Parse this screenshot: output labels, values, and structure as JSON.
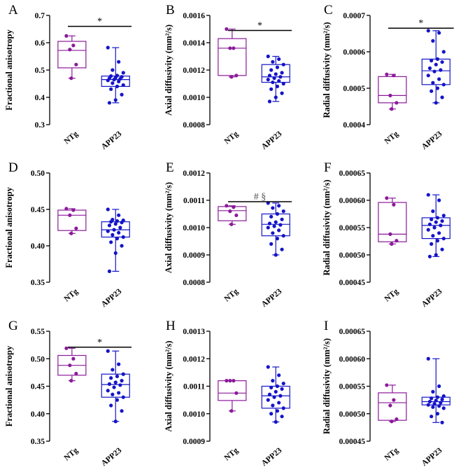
{
  "chart_data": [
    {
      "type": "box",
      "panel": "A",
      "ylabel": "Fractional anisotropy",
      "ylim": [
        0.3,
        0.7
      ],
      "yticks": [
        0.3,
        0.4,
        0.5,
        0.6,
        0.7
      ],
      "ytick_labels": [
        "0.3",
        "0.4",
        "0.5",
        "0.6",
        "0.7"
      ],
      "categories": [
        "NTg",
        "APP23"
      ],
      "annotation": "*",
      "groups": [
        {
          "name": "NTg",
          "color": "#8B1A9A",
          "box": {
            "min": 0.47,
            "q1": 0.508,
            "median": 0.572,
            "q3": 0.605,
            "max": 0.625
          },
          "points": [
            0.625,
            0.59,
            0.575,
            0.52,
            0.47
          ]
        },
        {
          "name": "APP23",
          "color": "#1414C8",
          "box": {
            "min": 0.38,
            "q1": 0.44,
            "median": 0.465,
            "q3": 0.478,
            "max": 0.582
          },
          "points": [
            0.582,
            0.53,
            0.5,
            0.49,
            0.48,
            0.478,
            0.475,
            0.472,
            0.47,
            0.468,
            0.465,
            0.462,
            0.458,
            0.452,
            0.445,
            0.44,
            0.43,
            0.41,
            0.39,
            0.38
          ]
        }
      ]
    },
    {
      "type": "box",
      "panel": "B",
      "ylabel": "Axial diffusivity (mm²/s)",
      "ylim": [
        0.0008,
        0.0016
      ],
      "yticks": [
        0.0008,
        0.001,
        0.0012,
        0.0014,
        0.0016
      ],
      "ytick_labels": [
        "0.0008",
        "0.0010",
        "0.0012",
        "0.0014",
        "0.0016"
      ],
      "categories": [
        "NTg",
        "APP23"
      ],
      "annotation": "*",
      "groups": [
        {
          "name": "NTg",
          "color": "#8B1A9A",
          "box": {
            "min": 0.00115,
            "q1": 0.00116,
            "median": 0.00136,
            "q3": 0.00143,
            "max": 0.0015
          },
          "points": [
            0.0015,
            0.00136,
            0.00136,
            0.00116,
            0.00115
          ]
        },
        {
          "name": "APP23",
          "color": "#1414C8",
          "box": {
            "min": 0.00097,
            "q1": 0.00111,
            "median": 0.00115,
            "q3": 0.00124,
            "max": 0.0013
          },
          "points": [
            0.0013,
            0.00128,
            0.00126,
            0.00124,
            0.00122,
            0.0012,
            0.00118,
            0.00117,
            0.00116,
            0.00115,
            0.00114,
            0.00113,
            0.00112,
            0.00111,
            0.0011,
            0.00108,
            0.00106,
            0.00103,
            0.001,
            0.00097
          ]
        }
      ]
    },
    {
      "type": "box",
      "panel": "C",
      "ylabel": "Radial diffusivity (mm²/s)",
      "ylim": [
        0.0004,
        0.0007
      ],
      "yticks": [
        0.0004,
        0.0005,
        0.0006,
        0.0007
      ],
      "ytick_labels": [
        "0.0004",
        "0.0005",
        "0.0006",
        "0.0007"
      ],
      "categories": [
        "NTg",
        "APP23"
      ],
      "annotation": "*",
      "groups": [
        {
          "name": "NTg",
          "color": "#8B1A9A",
          "box": {
            "min": 0.000443,
            "q1": 0.00046,
            "median": 0.00048,
            "q3": 0.000532,
            "max": 0.000538
          },
          "points": [
            0.000538,
            0.000535,
            0.00048,
            0.00046,
            0.000443
          ]
        },
        {
          "name": "APP23",
          "color": "#1414C8",
          "box": {
            "min": 0.00046,
            "q1": 0.00051,
            "median": 0.000548,
            "q3": 0.00058,
            "max": 0.000658
          },
          "points": [
            0.000658,
            0.000652,
            0.00063,
            0.0006,
            0.00058,
            0.000576,
            0.000572,
            0.000565,
            0.000555,
            0.00055,
            0.000546,
            0.000535,
            0.000525,
            0.000515,
            0.00051,
            0.0005,
            0.000492,
            0.000475,
            0.00046
          ]
        }
      ]
    },
    {
      "type": "box",
      "panel": "D",
      "ylabel": "Fractional anisotropy",
      "ylim": [
        0.35,
        0.5
      ],
      "yticks": [
        0.35,
        0.4,
        0.45,
        0.5
      ],
      "ytick_labels": [
        "0.35",
        "0.40",
        "0.45",
        "0.50"
      ],
      "categories": [
        "NTg",
        "APP23"
      ],
      "annotation": "",
      "groups": [
        {
          "name": "NTg",
          "color": "#8B1A9A",
          "box": {
            "min": 0.417,
            "q1": 0.421,
            "median": 0.442,
            "q3": 0.449,
            "max": 0.451
          },
          "points": [
            0.451,
            0.449,
            0.442,
            0.424,
            0.417
          ]
        },
        {
          "name": "APP23",
          "color": "#1414C8",
          "box": {
            "min": 0.365,
            "q1": 0.412,
            "median": 0.422,
            "q3": 0.433,
            "max": 0.45
          },
          "points": [
            0.45,
            0.442,
            0.436,
            0.435,
            0.434,
            0.433,
            0.432,
            0.43,
            0.428,
            0.425,
            0.422,
            0.42,
            0.418,
            0.415,
            0.412,
            0.41,
            0.405,
            0.4,
            0.39,
            0.365
          ]
        }
      ]
    },
    {
      "type": "box",
      "panel": "E",
      "ylabel": "Axial diffusivity (mm²/s)",
      "ylim": [
        0.0008,
        0.0012
      ],
      "yticks": [
        0.0008,
        0.0009,
        0.001,
        0.0011,
        0.0012
      ],
      "ytick_labels": [
        "0.0008",
        "0.0009",
        "0.0010",
        "0.0011",
        "0.0012"
      ],
      "categories": [
        "NTg",
        "APP23"
      ],
      "annotation": "# §",
      "groups": [
        {
          "name": "NTg",
          "color": "#8B1A9A",
          "box": {
            "min": 0.001012,
            "q1": 0.001025,
            "median": 0.001062,
            "q3": 0.001077,
            "max": 0.00108
          },
          "points": [
            0.00108,
            0.001075,
            0.00106,
            0.001045,
            0.001012
          ]
        },
        {
          "name": "APP23",
          "color": "#1414C8",
          "box": {
            "min": 0.0009,
            "q1": 0.00097,
            "median": 0.001012,
            "q3": 0.00105,
            "max": 0.00109
          },
          "points": [
            0.00109,
            0.00108,
            0.001072,
            0.00106,
            0.00105,
            0.00104,
            0.00103,
            0.00102,
            0.001015,
            0.00101,
            0.001005,
            0.001,
            0.00099,
            0.00098,
            0.00097,
            0.00096,
            0.00094,
            0.00092,
            0.0009
          ]
        }
      ]
    },
    {
      "type": "box",
      "panel": "F",
      "ylabel": "Radial diffusivity (mm²/s)",
      "ylim": [
        0.00045,
        0.00065
      ],
      "yticks": [
        0.00045,
        0.0005,
        0.00055,
        0.0006,
        0.00065
      ],
      "ytick_labels": [
        "0.00045",
        "0.00050",
        "0.00055",
        "0.00060",
        "0.00065"
      ],
      "categories": [
        "NTg",
        "APP23"
      ],
      "annotation": "",
      "groups": [
        {
          "name": "NTg",
          "color": "#8B1A9A",
          "box": {
            "min": 0.00052,
            "q1": 0.000524,
            "median": 0.000538,
            "q3": 0.000596,
            "max": 0.000604
          },
          "points": [
            0.000604,
            0.000592,
            0.000538,
            0.000526,
            0.00052
          ]
        },
        {
          "name": "APP23",
          "color": "#1414C8",
          "box": {
            "min": 0.000497,
            "q1": 0.00053,
            "median": 0.000554,
            "q3": 0.000568,
            "max": 0.00061
          },
          "points": [
            0.00061,
            0.0006,
            0.00058,
            0.000572,
            0.000568,
            0.000565,
            0.000562,
            0.00056,
            0.000556,
            0.000554,
            0.00055,
            0.000546,
            0.00054,
            0.000535,
            0.00053,
            0.000526,
            0.00052,
            0.00051,
            0.0005,
            0.000497
          ]
        }
      ]
    },
    {
      "type": "box",
      "panel": "G",
      "ylabel": "Fractional anisotropy",
      "ylim": [
        0.35,
        0.55
      ],
      "yticks": [
        0.35,
        0.4,
        0.45,
        0.5,
        0.55
      ],
      "ytick_labels": [
        "0.35",
        "0.40",
        "0.45",
        "0.50",
        "0.55"
      ],
      "categories": [
        "NTg",
        "APP23"
      ],
      "annotation": "*",
      "groups": [
        {
          "name": "NTg",
          "color": "#8B1A9A",
          "box": {
            "min": 0.46,
            "q1": 0.47,
            "median": 0.488,
            "q3": 0.506,
            "max": 0.519
          },
          "points": [
            0.519,
            0.5,
            0.488,
            0.473,
            0.46
          ]
        },
        {
          "name": "APP23",
          "color": "#1414C8",
          "box": {
            "min": 0.386,
            "q1": 0.43,
            "median": 0.453,
            "q3": 0.472,
            "max": 0.514
          },
          "points": [
            0.514,
            0.49,
            0.48,
            0.472,
            0.468,
            0.465,
            0.46,
            0.457,
            0.454,
            0.452,
            0.448,
            0.442,
            0.438,
            0.435,
            0.43,
            0.425,
            0.415,
            0.405,
            0.386
          ]
        }
      ]
    },
    {
      "type": "box",
      "panel": "H",
      "ylabel": "Axial diffusivity (mm²/s)",
      "ylim": [
        0.0009,
        0.0013
      ],
      "yticks": [
        0.0009,
        0.001,
        0.0011,
        0.0012,
        0.0013
      ],
      "ytick_labels": [
        "0.0009",
        "0.0010",
        "0.0011",
        "0.0012",
        "0.0013"
      ],
      "categories": [
        "NTg",
        "APP23"
      ],
      "annotation": "",
      "groups": [
        {
          "name": "NTg",
          "color": "#8B1A9A",
          "box": {
            "min": 0.00101,
            "q1": 0.001048,
            "median": 0.001075,
            "q3": 0.00112,
            "max": 0.00112
          },
          "points": [
            0.00112,
            0.00112,
            0.00112,
            0.001075,
            0.00101
          ]
        },
        {
          "name": "APP23",
          "color": "#1414C8",
          "box": {
            "min": 0.00097,
            "q1": 0.00102,
            "median": 0.001065,
            "q3": 0.0011,
            "max": 0.00117
          },
          "points": [
            0.00117,
            0.00114,
            0.00112,
            0.00111,
            0.0011,
            0.001095,
            0.00109,
            0.00108,
            0.00107,
            0.001065,
            0.00106,
            0.00105,
            0.00104,
            0.00103,
            0.00102,
            0.00101,
            0.001,
            0.00099,
            0.00097
          ]
        }
      ]
    },
    {
      "type": "box",
      "panel": "I",
      "ylabel": "Radial diffusivity (mm²/s)",
      "ylim": [
        0.00045,
        0.00065
      ],
      "yticks": [
        0.00045,
        0.0005,
        0.00055,
        0.0006,
        0.00065
      ],
      "ytick_labels": [
        "0.00045",
        "0.00050",
        "0.00055",
        "0.00060",
        "0.00065"
      ],
      "categories": [
        "NTg",
        "APP23"
      ],
      "annotation": "",
      "groups": [
        {
          "name": "NTg",
          "color": "#8B1A9A",
          "box": {
            "min": 0.000486,
            "q1": 0.000488,
            "median": 0.00052,
            "q3": 0.000538,
            "max": 0.000552
          },
          "points": [
            0.000552,
            0.000525,
            0.000515,
            0.00049,
            0.000486
          ]
        },
        {
          "name": "APP23",
          "color": "#1414C8",
          "box": {
            "min": 0.000484,
            "q1": 0.000516,
            "median": 0.000522,
            "q3": 0.00053,
            "max": 0.0006
          },
          "points": [
            0.0006,
            0.00055,
            0.00054,
            0.000532,
            0.00053,
            0.000528,
            0.000526,
            0.000524,
            0.000522,
            0.00052,
            0.000518,
            0.000516,
            0.000514,
            0.000512,
            0.00051,
            0.0005,
            0.000495,
            0.000484
          ]
        }
      ]
    }
  ]
}
